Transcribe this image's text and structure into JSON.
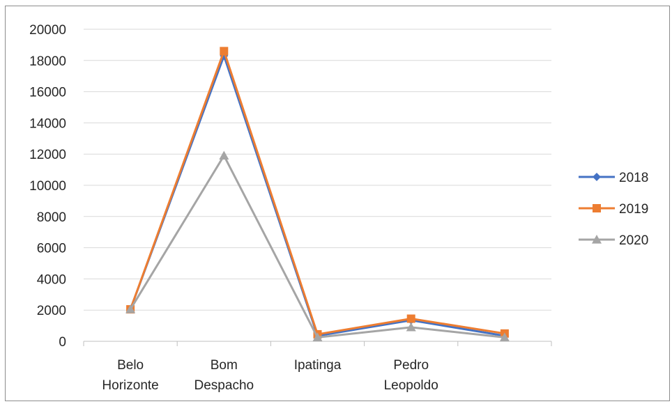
{
  "chart_data": {
    "type": "line",
    "categories": [
      [
        "Belo",
        "Horizonte"
      ],
      [
        "Bom",
        "Despacho"
      ],
      [
        "Ipatinga"
      ],
      [
        "Pedro",
        "Leopoldo"
      ],
      [
        ""
      ]
    ],
    "y_ticks": [
      "0",
      "2000",
      "4000",
      "6000",
      "8000",
      "10000",
      "12000",
      "14000",
      "16000",
      "18000",
      "20000"
    ],
    "ylim": [
      0,
      20000
    ],
    "grid": true,
    "legend_position": "right",
    "series": [
      {
        "name": "2018",
        "color": "#4472C4",
        "marker": "diamond",
        "values": [
          2050,
          18300,
          350,
          1350,
          350
        ]
      },
      {
        "name": "2019",
        "color": "#ED7D31",
        "marker": "square",
        "values": [
          2050,
          18600,
          450,
          1450,
          500
        ]
      },
      {
        "name": "2020",
        "color": "#A5A5A5",
        "marker": "triangle",
        "values": [
          2050,
          11900,
          250,
          900,
          250
        ]
      }
    ]
  }
}
